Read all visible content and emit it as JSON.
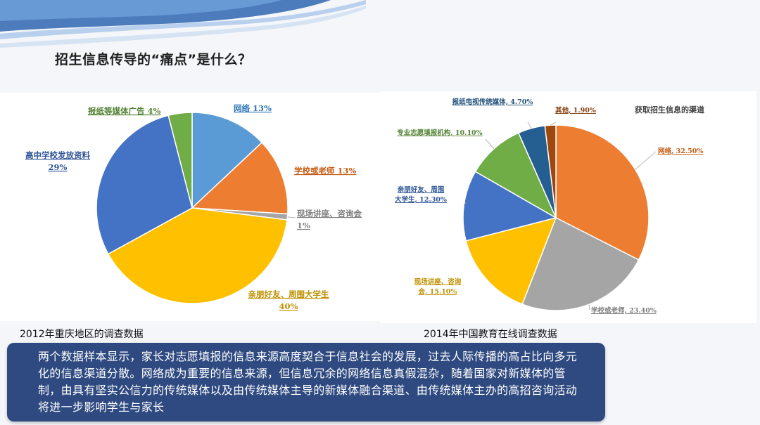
{
  "slide": {
    "title": "招生信息传导的“痛点”是什么？",
    "summary": "两个数据样本显示，家长对志愿填报的信息来源高度契合于信息社会的发展，过去人际传播的高占比向多元化的信息渠道分散。网络成为重要的信息来源，但信息冗余的网络信息真假混杂，随着国家对新媒体的管制，由具有坚实公信力的传统媒体以及由传统媒体主导的新媒体融合渠道、由传统媒体主办的高招咨询活动将进一步影响学生与家长"
  },
  "chart_data": [
    {
      "type": "pie",
      "title": "",
      "caption": "2012年重庆地区的调查数据",
      "slices": [
        {
          "label": "网络",
          "value": 13,
          "value_text": "13%",
          "color": "#5b9bd5",
          "label_color": "#2e75b6"
        },
        {
          "label": "学校或老师",
          "value": 13,
          "value_text": "13%",
          "color": "#ed7d31",
          "label_color": "#c55a11"
        },
        {
          "label": "现场讲座、咨询会",
          "value": 1,
          "value_text": "1%",
          "color": "#a5a5a5",
          "label_color": "#7f7f7f"
        },
        {
          "label": "亲朋好友、周围大学生",
          "value": 40,
          "value_text": "40%",
          "color": "#ffc000",
          "label_color": "#bf9000"
        },
        {
          "label": "高中学校发放资料",
          "value": 29,
          "value_text": "29%",
          "color": "#4472c4",
          "label_color": "#2f5597"
        },
        {
          "label": "报纸等媒体广告",
          "value": 4,
          "value_text": "4%",
          "color": "#70ad47",
          "label_color": "#548235"
        }
      ]
    },
    {
      "type": "pie",
      "title": "获取招生信息的渠道",
      "caption": "2014年中国教育在线调查数据",
      "slices": [
        {
          "label": "网络",
          "value": 32.5,
          "value_text": "32.50%",
          "color": "#ed7d31",
          "label_color": "#c55a11"
        },
        {
          "label": "学校或老师",
          "value": 23.4,
          "value_text": "23.40%",
          "color": "#a5a5a5",
          "label_color": "#7f7f7f"
        },
        {
          "label": "现场讲座、咨询会",
          "value": 15.1,
          "value_text": "15.10%",
          "color": "#ffc000",
          "label_color": "#bf9000"
        },
        {
          "label": "亲朋好友、周围大学生",
          "value": 12.3,
          "value_text": "12.30%",
          "color": "#4472c4",
          "label_color": "#2f5597"
        },
        {
          "label": "专业志愿填报机构",
          "value": 10.1,
          "value_text": "10.10%",
          "color": "#70ad47",
          "label_color": "#548235"
        },
        {
          "label": "报纸电视传统媒体",
          "value": 4.7,
          "value_text": "4.70%",
          "color": "#255e91",
          "label_color": "#1f4e79"
        },
        {
          "label": "其他",
          "value": 1.9,
          "value_text": "1.90%",
          "color": "#9e480e",
          "label_color": "#843c0c"
        }
      ]
    }
  ]
}
